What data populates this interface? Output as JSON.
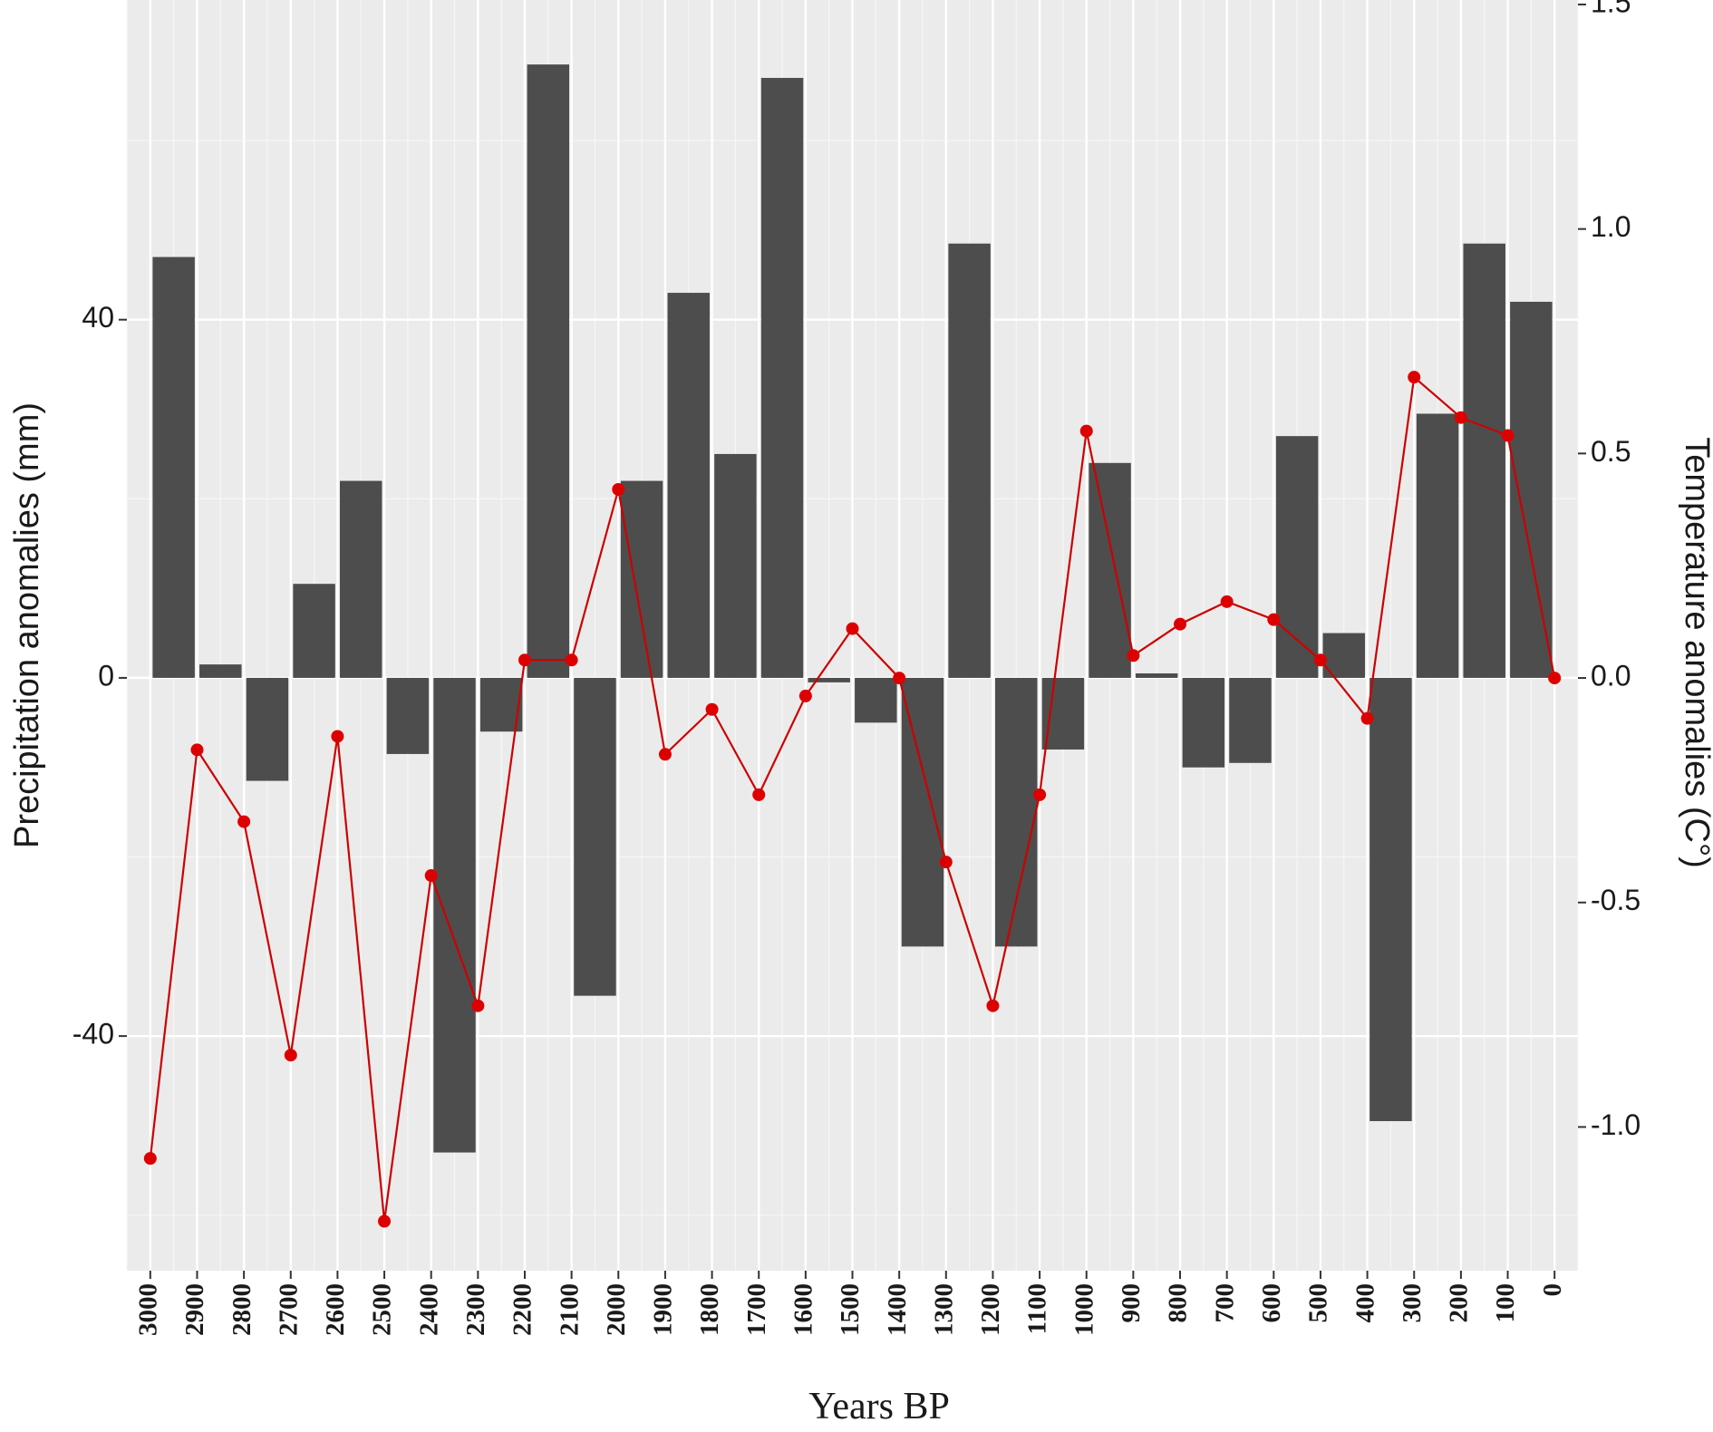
{
  "chart_data": {
    "type": "bar+line",
    "xlabel": "Years BP",
    "ylabel_left": "Precipitation anomalies (mm)",
    "ylabel_right": "Temperature anomalies (C°)",
    "x": [
      3000,
      2900,
      2800,
      2700,
      2600,
      2500,
      2400,
      2300,
      2200,
      2100,
      2000,
      1900,
      1800,
      1700,
      1600,
      1500,
      1400,
      1300,
      1200,
      1100,
      1000,
      900,
      800,
      700,
      600,
      500,
      400,
      300,
      200,
      100,
      0
    ],
    "x_tick_labels": [
      "3000",
      "2900",
      "2800",
      "2700",
      "2600",
      "2500",
      "2400",
      "2300",
      "2200",
      "2100",
      "2000",
      "1900",
      "1800",
      "1700",
      "1600",
      "1500",
      "1400",
      "1300",
      "1200",
      "1100",
      "1000",
      "900",
      "800",
      "700",
      "600",
      "500",
      "400",
      "300",
      "200",
      "100",
      "0"
    ],
    "xlim": [
      3050,
      -50
    ],
    "ylim_left": [
      -66.2,
      75.7
    ],
    "yticks_left": [
      -40,
      0,
      40
    ],
    "ylim_right": [
      -1.32,
      1.51
    ],
    "yticks_right": [
      -1.0,
      -0.5,
      0.0,
      0.5,
      1.0,
      1.5
    ],
    "yticks_right_labels": [
      "-1.0",
      "-0.5",
      "0.0",
      "0.5",
      "1.0",
      "1.5"
    ],
    "precipitation": {
      "name": "Precipitation anomalies",
      "color": "#4d4d4d",
      "values": [
        47,
        1.5,
        -11.5,
        10.5,
        22,
        -8.5,
        -53,
        -6,
        68.5,
        -35.5,
        22,
        43,
        25,
        67,
        -0.5,
        -5,
        -30,
        48.5,
        -30,
        -8,
        24,
        0.5,
        -10,
        -9.5,
        27,
        5,
        -49.5,
        29.5,
        48.5,
        42
      ]
    },
    "temperature": {
      "name": "Temperature anomalies",
      "color": "#cc0000",
      "values": [
        -1.07,
        -0.16,
        -0.32,
        -0.84,
        -0.13,
        -1.21,
        -0.44,
        -0.73,
        0.04,
        0.04,
        0.42,
        -0.17,
        -0.07,
        -0.26,
        -0.04,
        0.11,
        0.0,
        -0.41,
        -0.73,
        -0.26,
        0.55,
        0.05,
        0.12,
        0.17,
        0.13,
        0.04,
        -0.09,
        0.67,
        0.58,
        0.54,
        0.0
      ]
    },
    "panel_background": "#ebebeb",
    "grid": true
  }
}
